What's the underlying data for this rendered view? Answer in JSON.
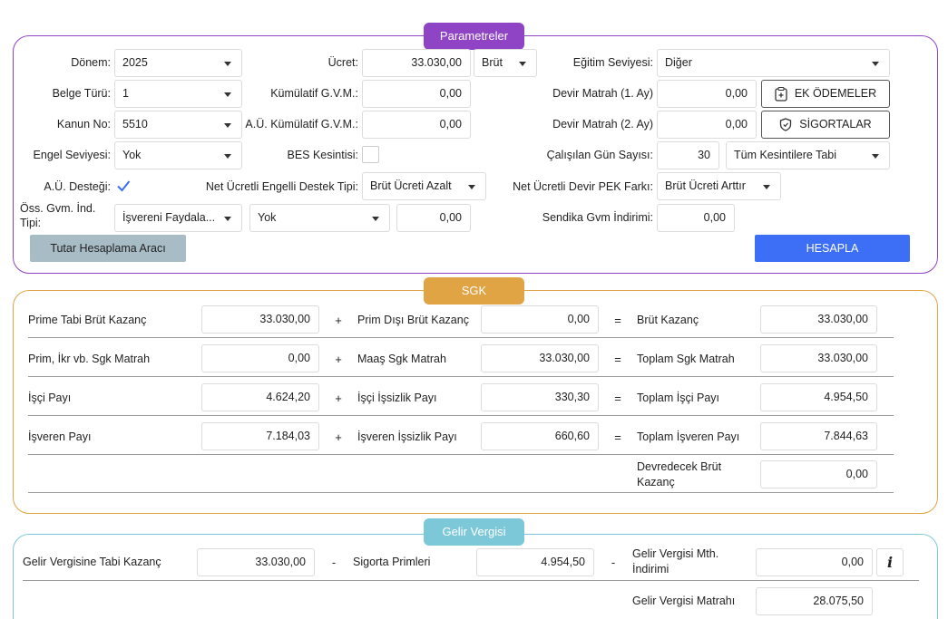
{
  "params": {
    "title": "Parametreler",
    "donem": {
      "label": "Dönem:",
      "value": "2025"
    },
    "belge_turu": {
      "label": "Belge Türü:",
      "value": "1"
    },
    "kanun_no": {
      "label": "Kanun No:",
      "value": "5510"
    },
    "engel_seviyesi": {
      "label": "Engel Seviyesi:",
      "value": "Yok"
    },
    "au_destegi": {
      "label": "A.Ü. Desteği:",
      "checked": true
    },
    "oss_gvm": {
      "label": "Öss. Gvm. İnd. Tipi:",
      "value": "İşvereni Faydala...",
      "value2": "Yok",
      "amount": "0,00"
    },
    "ucret": {
      "label": "Ücret:",
      "value": "33.030,00",
      "type": "Brüt"
    },
    "kumulatif_gvm": {
      "label": "Kümülatif G.V.M.:",
      "value": "0,00"
    },
    "au_kumulatif_gvm": {
      "label": "A.Ü. Kümülatif G.V.M.:",
      "value": "0,00"
    },
    "bes_kesintisi": {
      "label": "BES Kesintisi:",
      "checked": false
    },
    "net_engelli": {
      "label": "Net Ücretli Engelli Destek Tipi:",
      "value": "Brüt Ücreti Azalt"
    },
    "egitim": {
      "label": "Eğitim Seviyesi:",
      "value": "Diğer"
    },
    "devir1": {
      "label": "Devir Matrah (1. Ay)",
      "value": "0,00"
    },
    "devir2": {
      "label": "Devir Matrah (2. Ay)",
      "value": "0,00"
    },
    "gun_sayisi": {
      "label": "Çalışılan Gün Sayısı:",
      "value": "30",
      "option": "Tüm Kesintilere Tabi"
    },
    "net_devir_pek": {
      "label": "Net Ücretli Devir PEK Farkı:",
      "value": "Brüt Ücreti Arttır"
    },
    "sendika": {
      "label": "Sendika Gvm İndirimi:",
      "value": "0,00"
    },
    "ek_odemeler": "EK ÖDEMELER",
    "sigortalar": "SİGORTALAR",
    "tutar_btn": "Tutar Hesaplama Aracı",
    "hesapla_btn": "HESAPLA"
  },
  "sgk": {
    "title": "SGK",
    "rows": [
      {
        "l1": "Prime Tabi Brüt Kazanç",
        "v1": "33.030,00",
        "op1": "+",
        "l2": "Prim Dışı Brüt Kazanç",
        "v2": "0,00",
        "op2": "=",
        "l3": "Brüt Kazanç",
        "v3": "33.030,00"
      },
      {
        "l1": "Prim, İkr vb. Sgk Matrah",
        "v1": "0,00",
        "op1": "+",
        "l2": "Maaş Sgk Matrah",
        "v2": "33.030,00",
        "op2": "=",
        "l3": "Toplam Sgk Matrah",
        "v3": "33.030,00"
      },
      {
        "l1": "İşçi Payı",
        "v1": "4.624,20",
        "op1": "+",
        "l2": "İşçi İşsizlik Payı",
        "v2": "330,30",
        "op2": "=",
        "l3": "Toplam İşçi Payı",
        "v3": "4.954,50"
      },
      {
        "l1": "İşveren Payı",
        "v1": "7.184,03",
        "op1": "+",
        "l2": "İşveren İşsizlik Payı",
        "v2": "660,60",
        "op2": "=",
        "l3": "Toplam İşveren Payı",
        "v3": "7.844,63"
      }
    ],
    "devredecek": {
      "label": "Devredecek Brüt Kazanç",
      "value": "0,00"
    }
  },
  "gelir": {
    "title": "Gelir Vergisi",
    "row1": {
      "l1": "Gelir Vergisine Tabi Kazanç",
      "v1": "33.030,00",
      "op1": "-",
      "l2": "Sigorta Primleri",
      "v2": "4.954,50",
      "op2": "-",
      "l3": "Gelir Vergisi Mth. İndirimi",
      "v3": "0,00"
    },
    "row2": {
      "l3": "Gelir Vergisi Matrahı",
      "v3": "28.075,50"
    },
    "info": "i"
  },
  "colors": {
    "params": "#8e44c4",
    "sgk": "#e0a444",
    "gelir": "#7cc8d8",
    "hesapla": "#3d6ef6",
    "tutar": "#a8bcc6"
  }
}
